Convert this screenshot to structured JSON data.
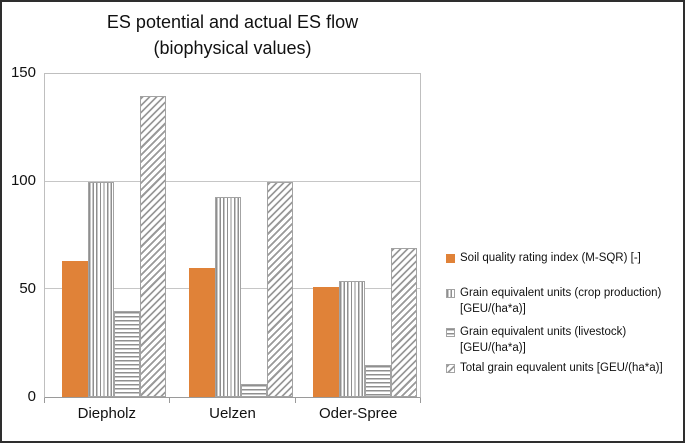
{
  "window": {
    "background_color": "#ffffff",
    "border_color": "#2e2e2e"
  },
  "chart_data": {
    "type": "bar",
    "title": "ES potential and actual ES flow (biophysical values)",
    "title_lines": [
      "ES potential and actual ES flow",
      "(biophysical values)"
    ],
    "categories": [
      "Diepholz",
      "Uelzen",
      "Oder-Spree"
    ],
    "series": [
      {
        "key": "sqr",
        "name": "Soil quality rating index (M-SQR) [-]",
        "legend_lines": [
          "Soil quality rating index (M-SQR) [-]"
        ],
        "pattern": "solid-orange",
        "color": "#e08238",
        "values": [
          63,
          60,
          51
        ]
      },
      {
        "key": "crop",
        "name": "Grain equivalent units (crop production) [GEU/(ha*a)]",
        "legend_lines": [
          "Grain equivalent units (crop production)",
          "[GEU/(ha*a)]"
        ],
        "pattern": "vertical-stripes",
        "color": "#8f8f8f",
        "values": [
          100,
          93,
          54
        ]
      },
      {
        "key": "livestock",
        "name": "Grain equivalent units (livestock) [GEU/(ha*a)]",
        "legend_lines": [
          "Grain equivalent units (livestock)",
          "[GEU/(ha*a)]"
        ],
        "pattern": "horizontal-stripes",
        "color": "#8f8f8f",
        "values": [
          40,
          6,
          15
        ]
      },
      {
        "key": "total",
        "name": "Total grain equvalent units [GEU/(ha*a)]",
        "legend_lines": [
          "Total grain equvalent units [GEU/(ha*a)]"
        ],
        "pattern": "diagonal-stripes",
        "color": "#9a9a9a",
        "values": [
          140,
          100,
          69
        ]
      }
    ],
    "y_axis": {
      "min": 0,
      "max": 150,
      "ticks": [
        0,
        50,
        100,
        150
      ]
    },
    "x_axis": {
      "label": ""
    },
    "grid": true,
    "legend_position": "right"
  }
}
